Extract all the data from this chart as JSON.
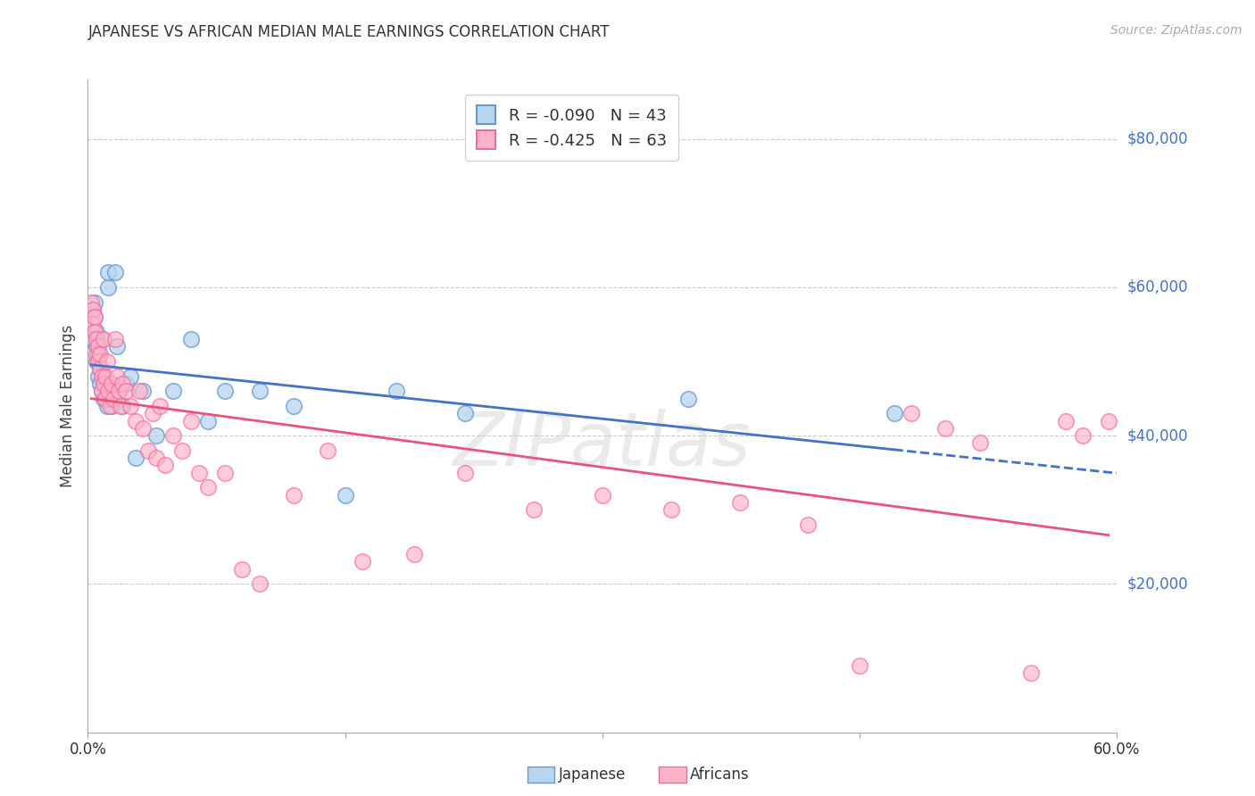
{
  "title": "JAPANESE VS AFRICAN MEDIAN MALE EARNINGS CORRELATION CHART",
  "source": "Source: ZipAtlas.com",
  "ylabel": "Median Male Earnings",
  "y_ticks": [
    0,
    20000,
    40000,
    60000,
    80000
  ],
  "y_tick_labels": [
    "",
    "$20,000",
    "$40,000",
    "$60,000",
    "$80,000"
  ],
  "ylim": [
    0,
    88000
  ],
  "xlim": [
    0.0,
    0.6
  ],
  "legend_r_japanese": "-0.090",
  "legend_n_japanese": "43",
  "legend_r_african": "-0.425",
  "legend_n_african": "63",
  "japanese_color_face": "#b8d4ee",
  "japanese_color_edge": "#6699cc",
  "african_color_face": "#ffb3c6",
  "african_color_edge": "#f768a1",
  "trend_blue": "#4472c4",
  "trend_pink": "#e8547a",
  "watermark": "ZIPAtlas",
  "japanese_x": [
    0.002,
    0.003,
    0.003,
    0.004,
    0.004,
    0.005,
    0.005,
    0.005,
    0.006,
    0.006,
    0.007,
    0.007,
    0.008,
    0.008,
    0.009,
    0.009,
    0.01,
    0.011,
    0.012,
    0.012,
    0.013,
    0.014,
    0.015,
    0.016,
    0.017,
    0.018,
    0.02,
    0.022,
    0.025,
    0.028,
    0.032,
    0.04,
    0.05,
    0.06,
    0.07,
    0.08,
    0.1,
    0.12,
    0.15,
    0.18,
    0.22,
    0.35,
    0.47
  ],
  "japanese_y": [
    55000,
    53000,
    57000,
    56000,
    58000,
    50000,
    52000,
    54000,
    48000,
    51000,
    47000,
    49000,
    46000,
    53000,
    48000,
    45000,
    47000,
    44000,
    60000,
    62000,
    46000,
    44000,
    45000,
    62000,
    52000,
    46000,
    44000,
    47000,
    48000,
    37000,
    46000,
    40000,
    46000,
    53000,
    42000,
    46000,
    46000,
    44000,
    32000,
    46000,
    43000,
    45000,
    43000
  ],
  "african_x": [
    0.002,
    0.003,
    0.003,
    0.004,
    0.004,
    0.005,
    0.005,
    0.006,
    0.006,
    0.007,
    0.007,
    0.008,
    0.008,
    0.009,
    0.009,
    0.01,
    0.01,
    0.011,
    0.012,
    0.013,
    0.014,
    0.015,
    0.016,
    0.017,
    0.018,
    0.019,
    0.02,
    0.022,
    0.025,
    0.028,
    0.03,
    0.032,
    0.035,
    0.038,
    0.04,
    0.042,
    0.045,
    0.05,
    0.055,
    0.06,
    0.065,
    0.07,
    0.08,
    0.09,
    0.1,
    0.12,
    0.14,
    0.16,
    0.19,
    0.22,
    0.26,
    0.3,
    0.34,
    0.38,
    0.42,
    0.45,
    0.48,
    0.5,
    0.52,
    0.55,
    0.57,
    0.58,
    0.595
  ],
  "african_y": [
    58000,
    57000,
    55000,
    56000,
    54000,
    53000,
    51000,
    52000,
    50000,
    49000,
    51000,
    48000,
    46000,
    47000,
    53000,
    48000,
    45000,
    50000,
    46000,
    44000,
    47000,
    45000,
    53000,
    48000,
    46000,
    44000,
    47000,
    46000,
    44000,
    42000,
    46000,
    41000,
    38000,
    43000,
    37000,
    44000,
    36000,
    40000,
    38000,
    42000,
    35000,
    33000,
    35000,
    22000,
    20000,
    32000,
    38000,
    23000,
    24000,
    35000,
    30000,
    32000,
    30000,
    31000,
    28000,
    9000,
    43000,
    41000,
    39000,
    8000,
    42000,
    40000,
    42000
  ]
}
